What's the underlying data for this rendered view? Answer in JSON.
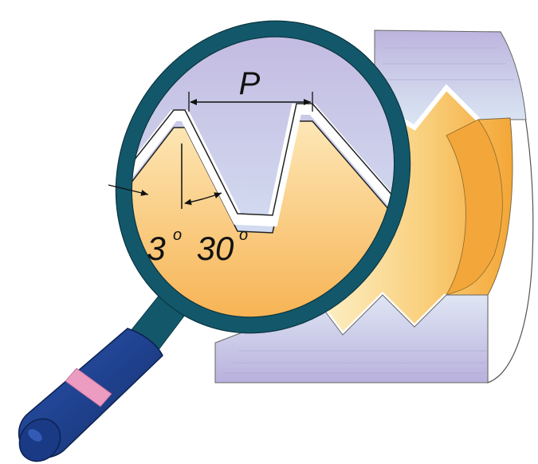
{
  "labels": {
    "pitch": "P",
    "flank_angle_small": "3",
    "flank_angle_large": "30",
    "degree_symbol": "o"
  },
  "colors": {
    "lens_rim": "#13586a",
    "thread_top": "#b9b3dc",
    "thread_light": "#d7e7f3",
    "thread_orange": "#f6b044",
    "thread_orange_light": "#fde9b9",
    "handle": "#1b3c86",
    "handle_band": "#ec9bc1"
  },
  "icons": [
    "magnifying-glass-icon"
  ]
}
